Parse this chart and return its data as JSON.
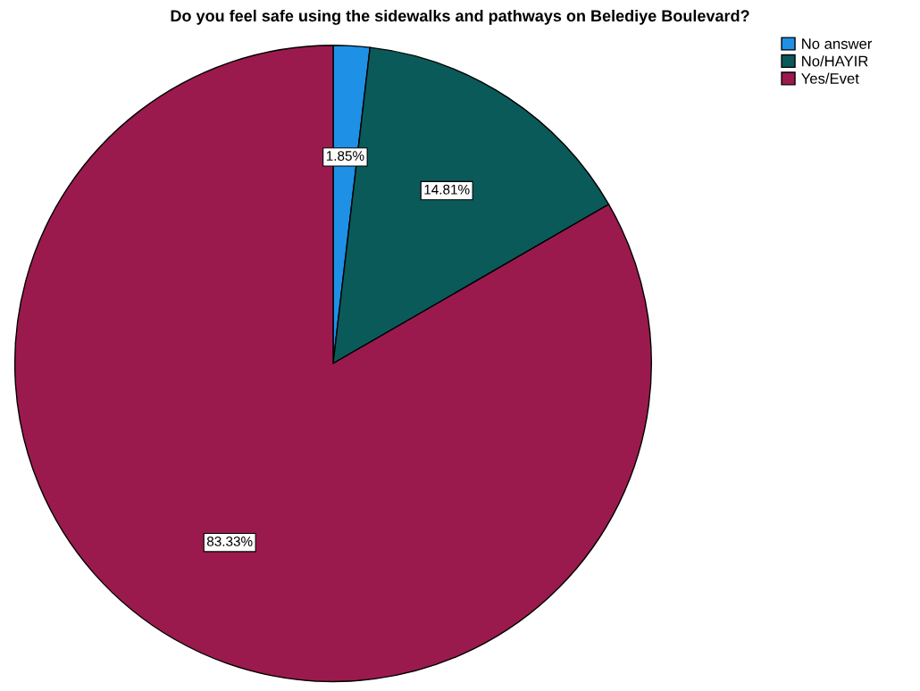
{
  "chart_data": {
    "type": "pie",
    "title": "Do you feel safe using the sidewalks and pathways on Belediye Boulevard?",
    "categories": [
      "No answer",
      "No/HAYIR",
      "Yes/Evet"
    ],
    "values": [
      1.85,
      14.81,
      83.33
    ],
    "colors": [
      "#1e90e6",
      "#0b5a5a",
      "#9b1a4e"
    ],
    "value_labels": [
      "1.85%",
      "14.81%",
      "83.33%"
    ],
    "legend": "top right"
  }
}
